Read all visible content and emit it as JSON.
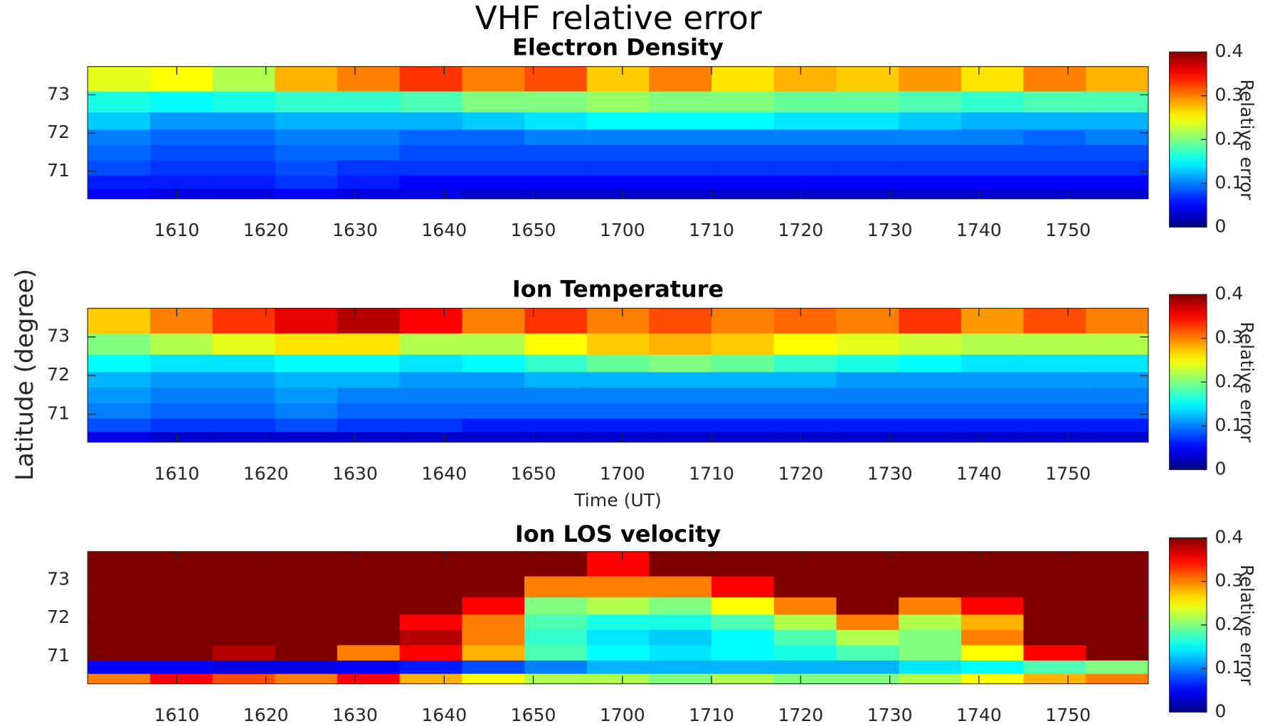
{
  "title": "VHF relative error",
  "ylabel": "Latitude (degree)",
  "chart_data": [
    {
      "type": "heatmap",
      "title": "Electron Density",
      "x": [
        963.5,
        970.5,
        977.5,
        984.5,
        991.5,
        998.5,
        1005.5,
        1012.5,
        1019.5,
        1026.5,
        1033.5,
        1040.5,
        1047.5,
        1054.5,
        1061.5,
        1068.5,
        1075.5
      ],
      "y": [
        70.4,
        70.7,
        71.1,
        71.5,
        71.9,
        72.3,
        72.8,
        73.4
      ],
      "values": [
        [
          0.05,
          0.04,
          0.04,
          0.05,
          0.04,
          0.04,
          0.03,
          0.03,
          0.03,
          0.03,
          0.03,
          0.03,
          0.03,
          0.03,
          0.03,
          0.03,
          0.03
        ],
        [
          0.06,
          0.06,
          0.06,
          0.07,
          0.06,
          0.05,
          0.05,
          0.05,
          0.05,
          0.05,
          0.05,
          0.05,
          0.05,
          0.05,
          0.05,
          0.05,
          0.05
        ],
        [
          0.08,
          0.07,
          0.07,
          0.08,
          0.07,
          0.07,
          0.07,
          0.07,
          0.07,
          0.07,
          0.07,
          0.07,
          0.07,
          0.07,
          0.07,
          0.07,
          0.07
        ],
        [
          0.09,
          0.08,
          0.08,
          0.09,
          0.09,
          0.08,
          0.08,
          0.08,
          0.08,
          0.08,
          0.08,
          0.08,
          0.08,
          0.08,
          0.08,
          0.08,
          0.08
        ],
        [
          0.1,
          0.09,
          0.09,
          0.1,
          0.1,
          0.09,
          0.09,
          0.1,
          0.1,
          0.1,
          0.1,
          0.1,
          0.1,
          0.1,
          0.1,
          0.09,
          0.1
        ],
        [
          0.13,
          0.11,
          0.11,
          0.12,
          0.12,
          0.12,
          0.13,
          0.14,
          0.15,
          0.15,
          0.15,
          0.14,
          0.14,
          0.13,
          0.12,
          0.12,
          0.12
        ],
        [
          0.16,
          0.15,
          0.16,
          0.17,
          0.17,
          0.18,
          0.2,
          0.2,
          0.21,
          0.2,
          0.2,
          0.19,
          0.19,
          0.18,
          0.17,
          0.18,
          0.18
        ],
        [
          0.24,
          0.25,
          0.22,
          0.28,
          0.3,
          0.33,
          0.3,
          0.32,
          0.27,
          0.3,
          0.26,
          0.28,
          0.27,
          0.29,
          0.26,
          0.3,
          0.28
        ]
      ],
      "xlim": [
        960,
        1079
      ],
      "xticks": [
        {
          "value": 970,
          "label": "1610"
        },
        {
          "value": 980,
          "label": "1620"
        },
        {
          "value": 990,
          "label": "1630"
        },
        {
          "value": 1000,
          "label": "1640"
        },
        {
          "value": 1010,
          "label": "1650"
        },
        {
          "value": 1020,
          "label": "1700"
        },
        {
          "value": 1030,
          "label": "1710"
        },
        {
          "value": 1040,
          "label": "1720"
        },
        {
          "value": 1050,
          "label": "1730"
        },
        {
          "value": 1060,
          "label": "1740"
        },
        {
          "value": 1070,
          "label": "1750"
        }
      ],
      "ylim": [
        70.28,
        73.74
      ],
      "yticks": [
        71,
        72,
        73
      ],
      "colorbar": {
        "label": "Relative error",
        "lim": [
          0,
          0.4
        ],
        "ticks": [
          0,
          0.1,
          0.2,
          0.3,
          0.4
        ],
        "colormap": "jet"
      }
    },
    {
      "type": "heatmap",
      "title": "Ion Temperature",
      "xlabel": "Time (UT)",
      "x": [
        963.5,
        970.5,
        977.5,
        984.5,
        991.5,
        998.5,
        1005.5,
        1012.5,
        1019.5,
        1026.5,
        1033.5,
        1040.5,
        1047.5,
        1054.5,
        1061.5,
        1068.5,
        1075.5
      ],
      "y": [
        70.4,
        70.7,
        71.1,
        71.5,
        71.9,
        72.3,
        72.8,
        73.4
      ],
      "values": [
        [
          0.04,
          0.03,
          0.03,
          0.03,
          0.03,
          0.03,
          0.03,
          0.03,
          0.03,
          0.03,
          0.03,
          0.03,
          0.03,
          0.03,
          0.03,
          0.03,
          0.03
        ],
        [
          0.08,
          0.07,
          0.07,
          0.08,
          0.07,
          0.07,
          0.06,
          0.06,
          0.06,
          0.06,
          0.06,
          0.06,
          0.06,
          0.06,
          0.06,
          0.06,
          0.06
        ],
        [
          0.1,
          0.09,
          0.09,
          0.1,
          0.09,
          0.09,
          0.09,
          0.09,
          0.09,
          0.09,
          0.09,
          0.09,
          0.09,
          0.09,
          0.09,
          0.09,
          0.09
        ],
        [
          0.11,
          0.1,
          0.1,
          0.11,
          0.1,
          0.1,
          0.1,
          0.1,
          0.1,
          0.1,
          0.1,
          0.1,
          0.1,
          0.1,
          0.1,
          0.1,
          0.1
        ],
        [
          0.12,
          0.11,
          0.11,
          0.12,
          0.12,
          0.11,
          0.11,
          0.12,
          0.12,
          0.12,
          0.12,
          0.12,
          0.11,
          0.11,
          0.11,
          0.11,
          0.11
        ],
        [
          0.15,
          0.14,
          0.14,
          0.15,
          0.15,
          0.14,
          0.15,
          0.17,
          0.19,
          0.2,
          0.19,
          0.17,
          0.16,
          0.15,
          0.14,
          0.14,
          0.14
        ],
        [
          0.2,
          0.22,
          0.24,
          0.26,
          0.26,
          0.22,
          0.22,
          0.25,
          0.27,
          0.28,
          0.27,
          0.25,
          0.24,
          0.23,
          0.22,
          0.22,
          0.22
        ],
        [
          0.27,
          0.3,
          0.33,
          0.36,
          0.38,
          0.35,
          0.3,
          0.33,
          0.3,
          0.32,
          0.3,
          0.31,
          0.3,
          0.33,
          0.29,
          0.32,
          0.3
        ]
      ],
      "xlim": [
        960,
        1079
      ],
      "xticks": [
        {
          "value": 970,
          "label": "1610"
        },
        {
          "value": 980,
          "label": "1620"
        },
        {
          "value": 990,
          "label": "1630"
        },
        {
          "value": 1000,
          "label": "1640"
        },
        {
          "value": 1010,
          "label": "1650"
        },
        {
          "value": 1020,
          "label": "1700"
        },
        {
          "value": 1030,
          "label": "1710"
        },
        {
          "value": 1040,
          "label": "1720"
        },
        {
          "value": 1050,
          "label": "1730"
        },
        {
          "value": 1060,
          "label": "1740"
        },
        {
          "value": 1070,
          "label": "1750"
        }
      ],
      "ylim": [
        70.28,
        73.74
      ],
      "yticks": [
        71,
        72,
        73
      ],
      "colorbar": {
        "label": "Relative error",
        "lim": [
          0,
          0.4
        ],
        "ticks": [
          0,
          0.1,
          0.2,
          0.3,
          0.4
        ],
        "colormap": "jet"
      }
    },
    {
      "type": "heatmap",
      "title": "Ion LOS velocity",
      "x": [
        963.5,
        970.5,
        977.5,
        984.5,
        991.5,
        998.5,
        1005.5,
        1012.5,
        1019.5,
        1026.5,
        1033.5,
        1040.5,
        1047.5,
        1054.5,
        1061.5,
        1068.5,
        1075.5
      ],
      "y": [
        70.4,
        70.7,
        71.1,
        71.5,
        71.9,
        72.3,
        72.8,
        73.4
      ],
      "values": [
        [
          0.3,
          0.35,
          0.32,
          0.3,
          0.35,
          0.28,
          0.25,
          0.22,
          0.22,
          0.2,
          0.22,
          0.2,
          0.2,
          0.22,
          0.25,
          0.28,
          0.3
        ],
        [
          0.05,
          0.05,
          0.04,
          0.04,
          0.05,
          0.06,
          0.08,
          0.1,
          0.12,
          0.12,
          0.12,
          0.12,
          0.12,
          0.14,
          0.15,
          0.18,
          0.2
        ],
        [
          0.45,
          0.4,
          0.38,
          0.42,
          0.3,
          0.35,
          0.28,
          0.18,
          0.15,
          0.14,
          0.15,
          0.16,
          0.18,
          0.2,
          0.25,
          0.35,
          0.45
        ],
        [
          0.5,
          0.45,
          0.4,
          0.45,
          0.4,
          0.38,
          0.3,
          0.17,
          0.14,
          0.13,
          0.15,
          0.18,
          0.22,
          0.2,
          0.3,
          0.4,
          0.5
        ],
        [
          0.5,
          0.42,
          0.45,
          0.5,
          0.4,
          0.35,
          0.3,
          0.18,
          0.16,
          0.16,
          0.18,
          0.22,
          0.3,
          0.22,
          0.28,
          0.45,
          0.5
        ],
        [
          0.5,
          0.5,
          0.45,
          0.5,
          0.45,
          0.4,
          0.35,
          0.2,
          0.22,
          0.2,
          0.25,
          0.3,
          0.4,
          0.3,
          0.35,
          0.45,
          0.5
        ],
        [
          0.5,
          0.5,
          0.5,
          0.5,
          0.45,
          0.45,
          0.4,
          0.3,
          0.3,
          0.3,
          0.35,
          0.45,
          0.5,
          0.4,
          0.4,
          0.5,
          0.45
        ],
        [
          0.45,
          0.5,
          0.5,
          0.5,
          0.5,
          0.45,
          0.45,
          0.4,
          0.35,
          0.4,
          0.45,
          0.5,
          0.5,
          0.45,
          0.45,
          0.5,
          0.45
        ]
      ],
      "xlim": [
        960,
        1079
      ],
      "xticks": [
        {
          "value": 970,
          "label": "1610"
        },
        {
          "value": 980,
          "label": "1620"
        },
        {
          "value": 990,
          "label": "1630"
        },
        {
          "value": 1000,
          "label": "1640"
        },
        {
          "value": 1010,
          "label": "1650"
        },
        {
          "value": 1020,
          "label": "1700"
        },
        {
          "value": 1030,
          "label": "1710"
        },
        {
          "value": 1040,
          "label": "1720"
        },
        {
          "value": 1050,
          "label": "1730"
        },
        {
          "value": 1060,
          "label": "1740"
        },
        {
          "value": 1070,
          "label": "1750"
        }
      ],
      "ylim": [
        70.28,
        73.74
      ],
      "yticks": [
        71,
        72,
        73
      ],
      "colorbar": {
        "label": "Relative error",
        "lim": [
          0,
          0.4
        ],
        "ticks": [
          0,
          0.1,
          0.2,
          0.3,
          0.4
        ],
        "colormap": "jet"
      }
    }
  ]
}
